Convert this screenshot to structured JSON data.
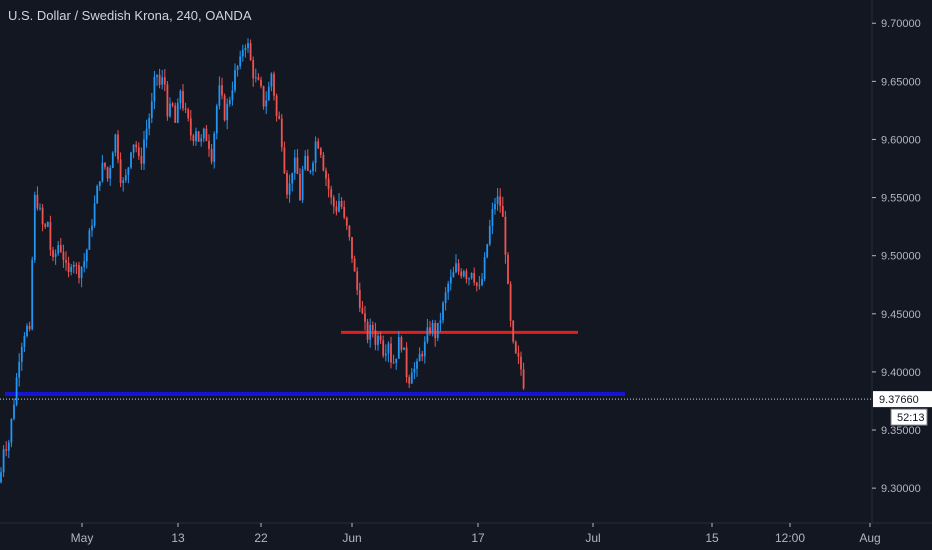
{
  "header": {
    "title": "U.S. Dollar / Swedish Krona, 240, OANDA"
  },
  "colors": {
    "background": "#131722",
    "up": "#2196f3",
    "down": "#ef5350",
    "resistance": "#e41d1d",
    "support": "#1414d4",
    "price_label_bg": "#ffffff"
  },
  "chart_data": {
    "type": "candlestick",
    "title": "U.S. Dollar / Swedish Krona, 240, OANDA",
    "ylim": [
      9.27,
      9.72
    ],
    "y_ticks": [
      {
        "value": 9.3,
        "label": "9.30000"
      },
      {
        "value": 9.35,
        "label": "9.35000"
      },
      {
        "value": 9.4,
        "label": "9.40000"
      },
      {
        "value": 9.45,
        "label": "9.45000"
      },
      {
        "value": 9.5,
        "label": "9.50000"
      },
      {
        "value": 9.55,
        "label": "9.55000"
      },
      {
        "value": 9.6,
        "label": "9.60000"
      },
      {
        "value": 9.65,
        "label": "9.65000"
      },
      {
        "value": 9.7,
        "label": "9.70000"
      }
    ],
    "x_ticks": [
      "May",
      "13",
      "22",
      "Jun",
      "17",
      "Jul",
      "15",
      "12:00",
      "Aug"
    ],
    "current_price": {
      "value": 9.3766,
      "label": "9.37660"
    },
    "countdown": "52:13",
    "lines": [
      {
        "name": "resistance",
        "y": 9.434,
        "color": "#e41d1d"
      },
      {
        "name": "support",
        "y": 9.381,
        "color": "#1414d4"
      }
    ],
    "path": [
      [
        0,
        9.305
      ],
      [
        4,
        9.34
      ],
      [
        8,
        9.335
      ],
      [
        14,
        9.375
      ],
      [
        20,
        9.42
      ],
      [
        26,
        9.44
      ],
      [
        30,
        9.43
      ],
      [
        34,
        9.55
      ],
      [
        38,
        9.545
      ],
      [
        44,
        9.52
      ],
      [
        48,
        9.53
      ],
      [
        52,
        9.49
      ],
      [
        58,
        9.51
      ],
      [
        62,
        9.505
      ],
      [
        68,
        9.48
      ],
      [
        72,
        9.5
      ],
      [
        78,
        9.485
      ],
      [
        84,
        9.495
      ],
      [
        88,
        9.51
      ],
      [
        92,
        9.53
      ],
      [
        96,
        9.55
      ],
      [
        100,
        9.57
      ],
      [
        104,
        9.58
      ],
      [
        108,
        9.565
      ],
      [
        112,
        9.59
      ],
      [
        116,
        9.605
      ],
      [
        120,
        9.57
      ],
      [
        124,
        9.56
      ],
      [
        128,
        9.575
      ],
      [
        132,
        9.6
      ],
      [
        136,
        9.595
      ],
      [
        140,
        9.575
      ],
      [
        144,
        9.6
      ],
      [
        148,
        9.615
      ],
      [
        152,
        9.63
      ],
      [
        156,
        9.66
      ],
      [
        160,
        9.645
      ],
      [
        164,
        9.655
      ],
      [
        168,
        9.62
      ],
      [
        172,
        9.63
      ],
      [
        176,
        9.61
      ],
      [
        180,
        9.645
      ],
      [
        184,
        9.625
      ],
      [
        188,
        9.615
      ],
      [
        192,
        9.6
      ],
      [
        196,
        9.61
      ],
      [
        200,
        9.595
      ],
      [
        204,
        9.605
      ],
      [
        208,
        9.6
      ],
      [
        212,
        9.585
      ],
      [
        216,
        9.625
      ],
      [
        220,
        9.645
      ],
      [
        224,
        9.62
      ],
      [
        228,
        9.63
      ],
      [
        232,
        9.645
      ],
      [
        236,
        9.66
      ],
      [
        240,
        9.665
      ],
      [
        244,
        9.685
      ],
      [
        248,
        9.68
      ],
      [
        252,
        9.66
      ],
      [
        256,
        9.65
      ],
      [
        260,
        9.645
      ],
      [
        264,
        9.63
      ],
      [
        268,
        9.64
      ],
      [
        272,
        9.66
      ],
      [
        276,
        9.62
      ],
      [
        280,
        9.615
      ],
      [
        284,
        9.58
      ],
      [
        288,
        9.55
      ],
      [
        292,
        9.575
      ],
      [
        296,
        9.58
      ],
      [
        300,
        9.55
      ],
      [
        304,
        9.585
      ],
      [
        308,
        9.57
      ],
      [
        312,
        9.58
      ],
      [
        316,
        9.6
      ],
      [
        320,
        9.595
      ],
      [
        324,
        9.575
      ],
      [
        328,
        9.56
      ],
      [
        332,
        9.545
      ],
      [
        336,
        9.54
      ],
      [
        340,
        9.55
      ],
      [
        344,
        9.53
      ],
      [
        348,
        9.52
      ],
      [
        352,
        9.5
      ],
      [
        356,
        9.475
      ],
      [
        360,
        9.46
      ],
      [
        364,
        9.44
      ],
      [
        368,
        9.43
      ],
      [
        372,
        9.44
      ],
      [
        376,
        9.425
      ],
      [
        380,
        9.435
      ],
      [
        384,
        9.415
      ],
      [
        388,
        9.43
      ],
      [
        392,
        9.405
      ],
      [
        396,
        9.415
      ],
      [
        400,
        9.43
      ],
      [
        404,
        9.415
      ],
      [
        408,
        9.39
      ],
      [
        412,
        9.405
      ],
      [
        416,
        9.4
      ],
      [
        420,
        9.415
      ],
      [
        424,
        9.42
      ],
      [
        428,
        9.435
      ],
      [
        432,
        9.44
      ],
      [
        436,
        9.43
      ],
      [
        440,
        9.445
      ],
      [
        444,
        9.46
      ],
      [
        448,
        9.475
      ],
      [
        452,
        9.48
      ],
      [
        456,
        9.49
      ],
      [
        460,
        9.485
      ],
      [
        464,
        9.49
      ],
      [
        468,
        9.48
      ],
      [
        472,
        9.49
      ],
      [
        476,
        9.475
      ],
      [
        480,
        9.47
      ],
      [
        484,
        9.49
      ],
      [
        488,
        9.515
      ],
      [
        492,
        9.535
      ],
      [
        496,
        9.55
      ],
      [
        500,
        9.545
      ],
      [
        504,
        9.525
      ],
      [
        508,
        9.47
      ],
      [
        510,
        9.445
      ],
      [
        514,
        9.415
      ],
      [
        518,
        9.41
      ],
      [
        522,
        9.4
      ],
      [
        526,
        9.3766
      ]
    ]
  }
}
